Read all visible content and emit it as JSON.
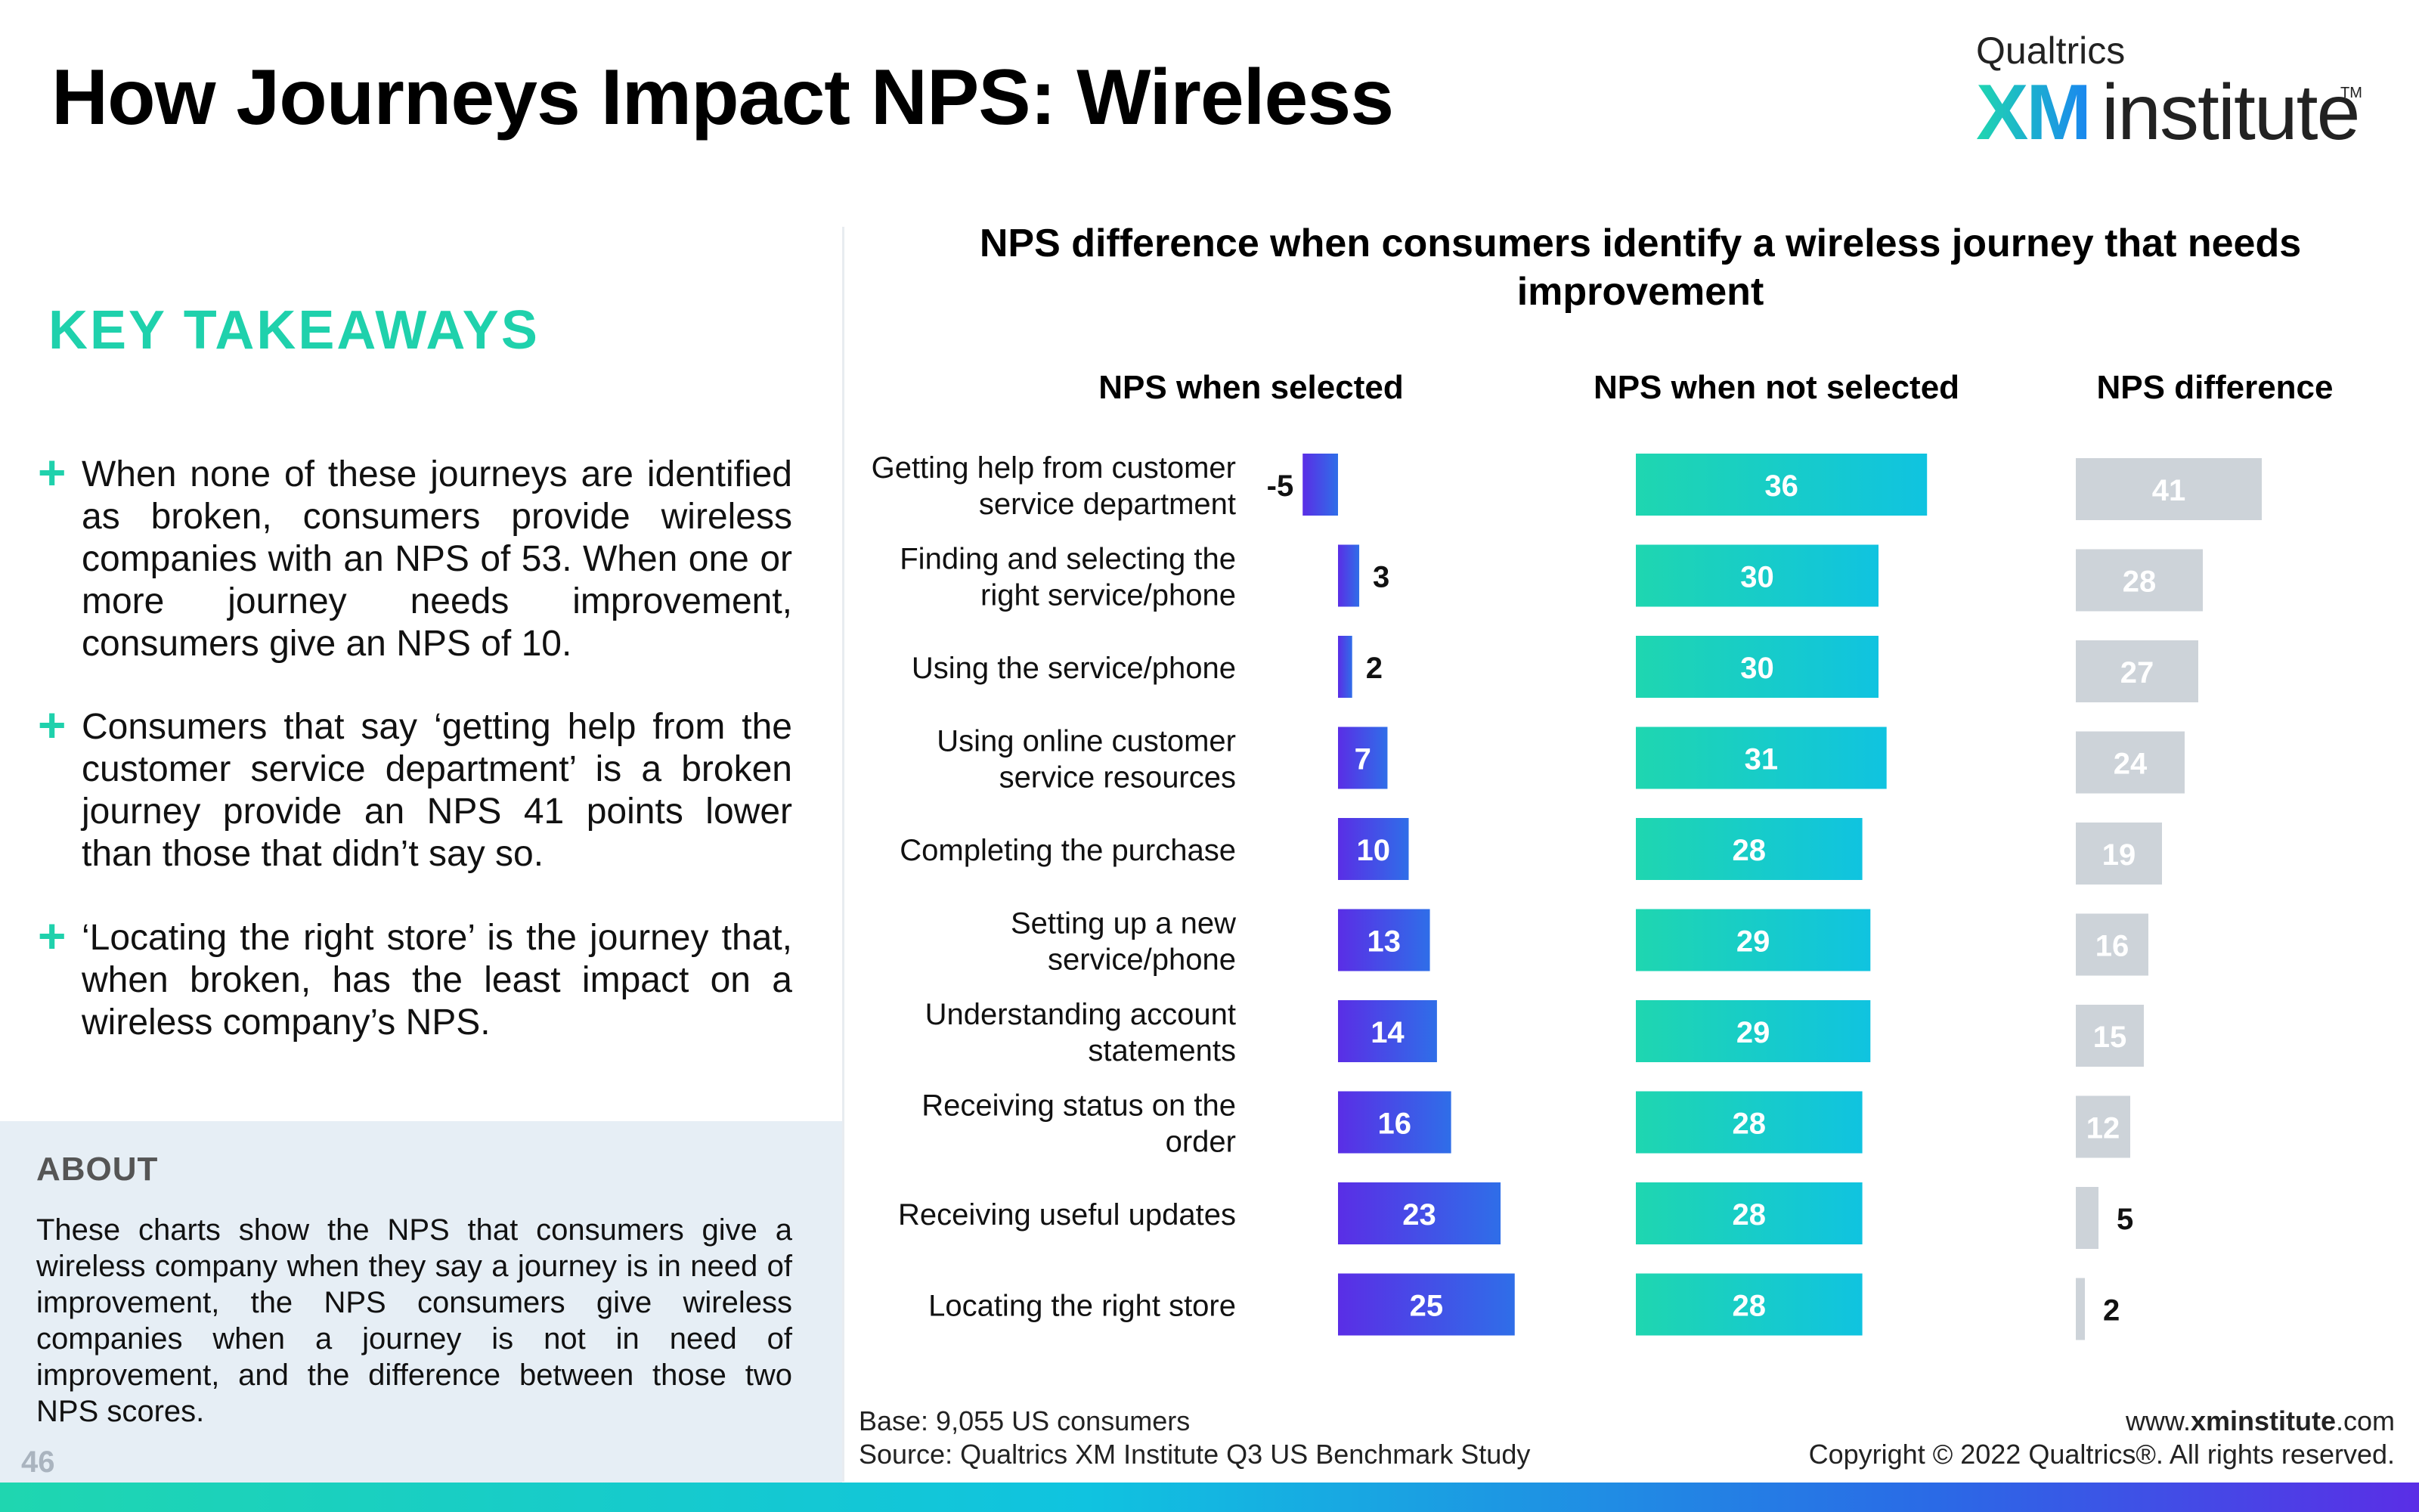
{
  "page": {
    "title": "How Journeys Impact NPS: Wireless",
    "logo": {
      "brand": "Qualtrics",
      "mark": "XM",
      "word": "institute",
      "tm": "TM"
    },
    "key_takeaways": {
      "heading": "KEY TAKEAWAYS",
      "items": [
        "When none of these journeys are identified as broken, consumers provide wireless companies with an NPS of 53. When one or more journey needs improvement, consumers give an NPS of 10.",
        "Consumers that say ‘getting help from the customer service department’ is a broken journey provide an NPS 41 points lower than those that didn’t say so.",
        "‘Locating the right store’ is the journey that, when broken, has the least impact on a wireless company’s NPS."
      ]
    },
    "about": {
      "heading": "ABOUT",
      "text": "These charts show the NPS that consumers give a wireless company when they say a journey is in need of improvement, the NPS consumers give wireless companies when a journey is not in need of improvement, and the difference between those two NPS scores."
    },
    "page_number": "46",
    "footer": {
      "base": "Base: 9,055 US consumers",
      "source": "Source: Qualtrics XM Institute Q3 US Benchmark Study",
      "url_prefix": "www.",
      "url_bold": "xminstitute",
      "url_suffix": ".com",
      "copyright": "Copyright © 2022 Qualtrics®. All rights reserved."
    },
    "colors": {
      "accent": "#1fd1ac",
      "selected_bar_start": "#5a2ee6",
      "selected_bar_end": "#2f6ee8",
      "not_selected_start": "#1fd6b0",
      "not_selected_end": "#10c3e0",
      "difference_bar": "#cdd3d9"
    }
  },
  "chart_data": {
    "type": "bar",
    "title": "NPS difference when consumers identify a wireless journey that needs improvement",
    "categories": [
      "Getting help from customer service department",
      "Finding and selecting the right service/phone",
      "Using the service/phone",
      "Using online customer service resources",
      "Completing the purchase",
      "Setting up a new service/phone",
      "Understanding account statements",
      "Receiving status on the order",
      "Receiving useful updates",
      "Locating the right store"
    ],
    "category_lines": [
      [
        "Getting help from customer",
        "service department"
      ],
      [
        "Finding and selecting the",
        "right service/phone"
      ],
      [
        "Using the service/phone"
      ],
      [
        "Using online customer",
        "service resources"
      ],
      [
        "Completing the purchase"
      ],
      [
        "Setting up a new",
        "service/phone"
      ],
      [
        "Understanding account",
        "statements"
      ],
      [
        "Receiving status on the",
        "order"
      ],
      [
        "Receiving useful updates"
      ],
      [
        "Locating the right store"
      ]
    ],
    "series": [
      {
        "name": "NPS when selected",
        "values": [
          -5,
          3,
          2,
          7,
          10,
          13,
          14,
          16,
          23,
          25
        ]
      },
      {
        "name": "NPS when not selected",
        "values": [
          36,
          30,
          30,
          31,
          28,
          29,
          29,
          28,
          28,
          28
        ]
      },
      {
        "name": "NPS difference",
        "values": [
          41,
          28,
          27,
          24,
          19,
          16,
          15,
          12,
          5,
          2
        ]
      }
    ]
  }
}
